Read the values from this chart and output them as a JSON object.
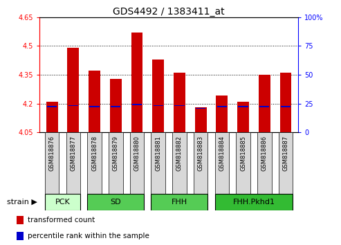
{
  "title": "GDS4492 / 1383411_at",
  "samples": [
    "GSM818876",
    "GSM818877",
    "GSM818878",
    "GSM818879",
    "GSM818880",
    "GSM818881",
    "GSM818882",
    "GSM818883",
    "GSM818884",
    "GSM818885",
    "GSM818886",
    "GSM818887"
  ],
  "red_values": [
    4.21,
    4.49,
    4.37,
    4.33,
    4.57,
    4.43,
    4.36,
    4.18,
    4.24,
    4.21,
    4.35,
    4.36
  ],
  "blue_positions": [
    4.185,
    4.19,
    4.185,
    4.185,
    4.195,
    4.19,
    4.19,
    4.175,
    4.185,
    4.185,
    4.185,
    4.185
  ],
  "ymin": 4.05,
  "ymax": 4.65,
  "yticks_left": [
    4.05,
    4.2,
    4.35,
    4.5,
    4.65
  ],
  "ytick_labels_left": [
    "4.05",
    "4.2",
    "4.35",
    "4.5",
    "4.65"
  ],
  "yticks_right_pct": [
    0,
    25,
    50,
    75,
    100
  ],
  "ytick_labels_right": [
    "0",
    "25",
    "50",
    "75",
    "100%"
  ],
  "bar_color": "#cc0000",
  "blue_color": "#0000cc",
  "bar_width": 0.55,
  "groups": [
    {
      "label": "PCK",
      "start": 0,
      "end": 1,
      "color": "#ccffcc"
    },
    {
      "label": "SD",
      "start": 2,
      "end": 4,
      "color": "#55cc55"
    },
    {
      "label": "FHH",
      "start": 5,
      "end": 7,
      "color": "#55cc55"
    },
    {
      "label": "FHH.Pkhd1",
      "start": 8,
      "end": 11,
      "color": "#33bb33"
    }
  ],
  "legend_items": [
    {
      "color": "#cc0000",
      "label": "transformed count"
    },
    {
      "color": "#0000cc",
      "label": "percentile rank within the sample"
    }
  ]
}
